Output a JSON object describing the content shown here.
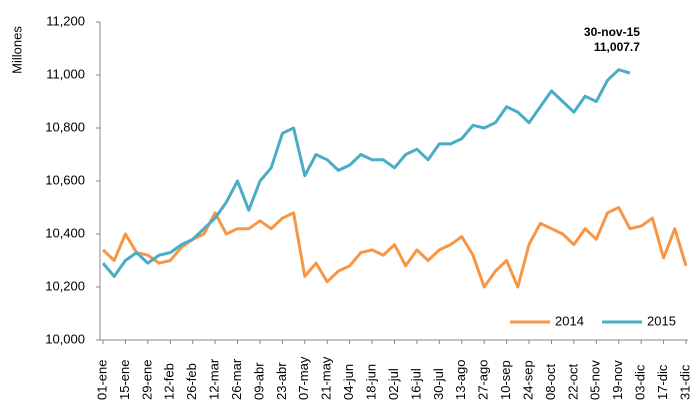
{
  "chart_data": {
    "type": "line",
    "y_label": "Millones",
    "categories": [
      "01-ene",
      null,
      "15-ene",
      null,
      "29-ene",
      null,
      "12-feb",
      null,
      "26-feb",
      null,
      "12-mar",
      null,
      "26-mar",
      null,
      "09-abr",
      null,
      "23-abr",
      null,
      "07-may",
      null,
      "21-may",
      null,
      "04-jun",
      null,
      "18-jun",
      null,
      "02-jul",
      null,
      "16-jul",
      null,
      "30-jul",
      null,
      "13-ago",
      null,
      "27-ago",
      null,
      "10-sep",
      null,
      "24-sep",
      null,
      "08-oct",
      null,
      "22-oct",
      null,
      "05-nov",
      null,
      "19-nov",
      null,
      "03-dic",
      null,
      "17-dic",
      null,
      "31-dic"
    ],
    "series": [
      {
        "name": "2014",
        "color": "#f79646",
        "values": [
          10340,
          10300,
          10400,
          10330,
          10320,
          10290,
          10300,
          10350,
          10380,
          10400,
          10480,
          10400,
          10420,
          10420,
          10450,
          10420,
          10460,
          10480,
          10240,
          10290,
          10220,
          10260,
          10280,
          10330,
          10340,
          10320,
          10360,
          10280,
          10340,
          10300,
          10340,
          10360,
          10390,
          10320,
          10200,
          10260,
          10300,
          10200,
          10360,
          10440,
          10420,
          10400,
          10360,
          10420,
          10380,
          10480,
          10500,
          10420,
          10430,
          10460,
          10310,
          10420,
          10280
        ]
      },
      {
        "name": "2015",
        "color": "#4bacc6",
        "values": [
          10290,
          10240,
          10300,
          10330,
          10290,
          10320,
          10330,
          10360,
          10380,
          10420,
          10460,
          10520,
          10600,
          10490,
          10600,
          10650,
          10780,
          10800,
          10620,
          10700,
          10680,
          10640,
          10660,
          10700,
          10680,
          10680,
          10650,
          10700,
          10720,
          10680,
          10740,
          10740,
          10760,
          10810,
          10800,
          10820,
          10880,
          10860,
          10820,
          10880,
          10940,
          10900,
          10860,
          10920,
          10900,
          10980,
          11020,
          11007.7,
          null,
          null,
          null,
          null,
          null
        ]
      }
    ],
    "ylim": [
      10000,
      11200
    ],
    "yticks": [
      {
        "value": 10000,
        "label": "10,000"
      },
      {
        "value": 10200,
        "label": "10,200"
      },
      {
        "value": 10400,
        "label": "10,400"
      },
      {
        "value": 10600,
        "label": "10,600"
      },
      {
        "value": 10800,
        "label": "10,800"
      },
      {
        "value": 11000,
        "label": "11,000"
      },
      {
        "value": 11200,
        "label": "11,200"
      }
    ],
    "annotation": {
      "label": "30-nov-15",
      "value": 11007.7,
      "value_label": "11,007.7"
    },
    "legend": "lower right"
  }
}
